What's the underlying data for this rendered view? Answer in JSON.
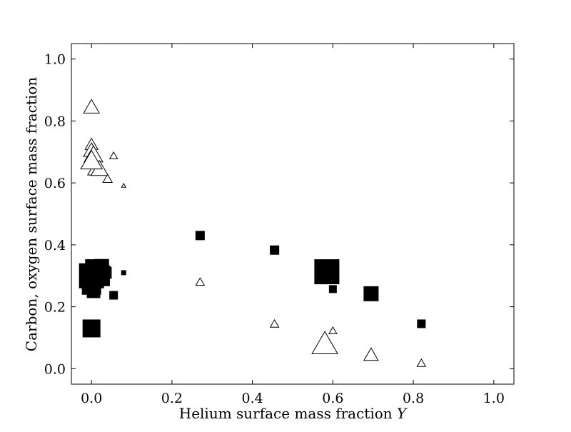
{
  "chart_data": {
    "type": "scatter",
    "title": "",
    "xlabel": "Helium surface mass fraction",
    "xlabel_symbol": "Y",
    "ylabel": "Carbon, oxygen surface mass fraction",
    "xlim": [
      -0.05,
      1.05
    ],
    "ylim": [
      -0.05,
      1.05
    ],
    "grid": false,
    "xticks": [
      "0.0",
      "0.2",
      "0.4",
      "0.6",
      "0.8",
      "1.0"
    ],
    "yticks": [
      "0.0",
      "0.2",
      "0.4",
      "0.6",
      "0.8",
      "1.0"
    ],
    "series": [
      {
        "marker": "filled-square",
        "color": "#000000",
        "points": [
          {
            "x": 0.0,
            "y": 0.3,
            "size": 34
          },
          {
            "x": 0.0,
            "y": 0.27,
            "size": 26
          },
          {
            "x": 0.005,
            "y": 0.25,
            "size": 18
          },
          {
            "x": 0.01,
            "y": 0.32,
            "size": 28
          },
          {
            "x": 0.02,
            "y": 0.3,
            "size": 28
          },
          {
            "x": 0.025,
            "y": 0.33,
            "size": 20
          },
          {
            "x": 0.035,
            "y": 0.31,
            "size": 16
          },
          {
            "x": 0.0,
            "y": 0.13,
            "size": 24
          },
          {
            "x": 0.055,
            "y": 0.237,
            "size": 11
          },
          {
            "x": 0.08,
            "y": 0.31,
            "size": 6
          },
          {
            "x": 0.27,
            "y": 0.43,
            "size": 12
          },
          {
            "x": 0.455,
            "y": 0.383,
            "size": 12
          },
          {
            "x": 0.585,
            "y": 0.313,
            "size": 34
          },
          {
            "x": 0.6,
            "y": 0.257,
            "size": 10
          },
          {
            "x": 0.695,
            "y": 0.242,
            "size": 20
          },
          {
            "x": 0.82,
            "y": 0.145,
            "size": 11
          }
        ]
      },
      {
        "marker": "open-triangle",
        "color": "#000000",
        "points": [
          {
            "x": 0.0,
            "y": 0.84,
            "size": 22
          },
          {
            "x": 0.0,
            "y": 0.72,
            "size": 18
          },
          {
            "x": 0.0,
            "y": 0.7,
            "size": 22
          },
          {
            "x": 0.005,
            "y": 0.685,
            "size": 26
          },
          {
            "x": 0.01,
            "y": 0.64,
            "size": 22
          },
          {
            "x": 0.02,
            "y": 0.64,
            "size": 24
          },
          {
            "x": 0.04,
            "y": 0.61,
            "size": 13
          },
          {
            "x": 0.055,
            "y": 0.685,
            "size": 11
          },
          {
            "x": 0.08,
            "y": 0.59,
            "size": 6
          },
          {
            "x": 0.0,
            "y": 0.665,
            "size": 30
          },
          {
            "x": 0.27,
            "y": 0.277,
            "size": 12
          },
          {
            "x": 0.455,
            "y": 0.142,
            "size": 12
          },
          {
            "x": 0.58,
            "y": 0.072,
            "size": 36
          },
          {
            "x": 0.6,
            "y": 0.12,
            "size": 11
          },
          {
            "x": 0.695,
            "y": 0.04,
            "size": 20
          },
          {
            "x": 0.82,
            "y": 0.015,
            "size": 12
          }
        ]
      }
    ]
  }
}
